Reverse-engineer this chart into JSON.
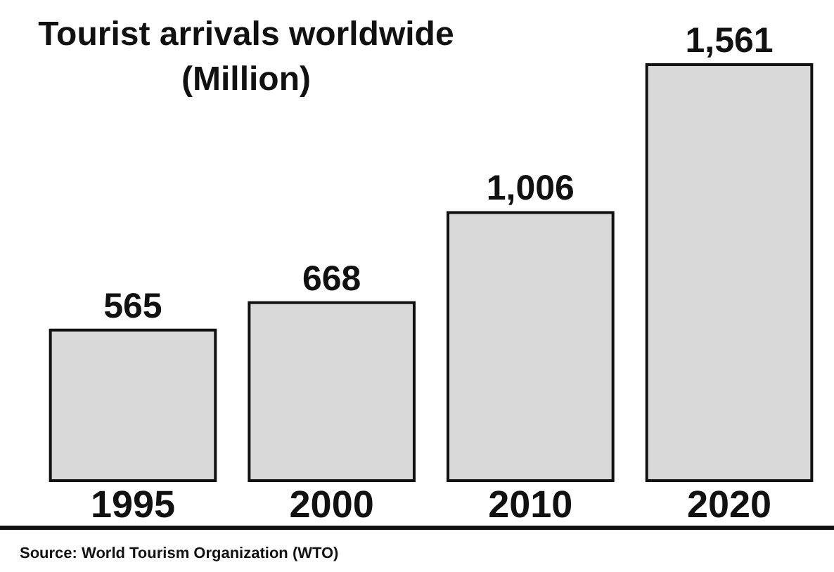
{
  "chart_data": {
    "type": "bar",
    "title": "Tourist arrivals worldwide",
    "subtitle": "(Million)",
    "categories": [
      "1995",
      "2000",
      "2010",
      "2020"
    ],
    "values": [
      565,
      668,
      1006,
      1561
    ],
    "color": "#d9d9d9",
    "value_labels": [
      "565",
      "668",
      "1,006",
      "1,561"
    ],
    "annotations": [
      "Source: World Tourism Organization (WTO)"
    ]
  }
}
